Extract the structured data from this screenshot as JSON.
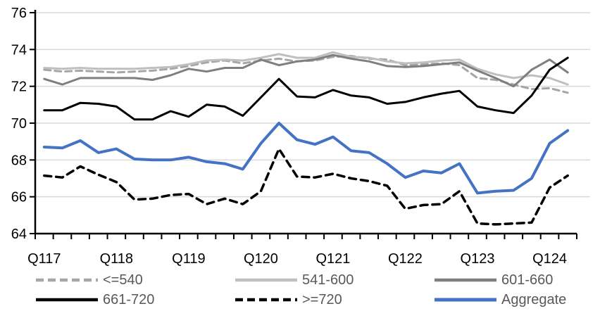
{
  "chart_data": {
    "type": "line",
    "title": "",
    "grid": true,
    "legend_position": "bottom",
    "ylim": [
      64,
      76
    ],
    "y_ticks": [
      64,
      66,
      68,
      70,
      72,
      74,
      76
    ],
    "x_tick_labels": [
      "Q117",
      "Q118",
      "Q119",
      "Q120",
      "Q121",
      "Q122",
      "Q123",
      "Q124"
    ],
    "categories": [
      "Q117",
      "Q217",
      "Q317",
      "Q417",
      "Q118",
      "Q218",
      "Q318",
      "Q418",
      "Q119",
      "Q219",
      "Q319",
      "Q419",
      "Q120",
      "Q220",
      "Q320",
      "Q420",
      "Q121",
      "Q221",
      "Q321",
      "Q421",
      "Q122",
      "Q222",
      "Q322",
      "Q422",
      "Q123",
      "Q223",
      "Q323",
      "Q423",
      "Q124",
      "Q224"
    ],
    "colors": {
      "axis": "#000000",
      "gridline": "#d9d9d9",
      "tick_label": "#000000",
      "legend_text": "#595959",
      "accent_blue": "#4472c4"
    },
    "series": [
      {
        "name": "<=540",
        "color": "#a6a6a6",
        "dash": "9 6",
        "width": 3,
        "values": [
          72.9,
          72.8,
          72.85,
          72.8,
          72.75,
          72.8,
          72.85,
          72.95,
          73.1,
          73.3,
          73.4,
          73.25,
          73.4,
          73.5,
          73.35,
          73.4,
          73.6,
          73.65,
          73.5,
          73.45,
          73.15,
          73.2,
          73.25,
          73.15,
          72.45,
          72.35,
          72.1,
          71.85,
          71.9,
          71.65
        ]
      },
      {
        "name": "541-600",
        "color": "#bfbfbf",
        "dash": null,
        "width": 3,
        "values": [
          73.0,
          72.95,
          73.0,
          72.95,
          72.95,
          72.95,
          73.0,
          73.05,
          73.2,
          73.4,
          73.45,
          73.4,
          73.55,
          73.75,
          73.55,
          73.55,
          73.85,
          73.6,
          73.55,
          73.35,
          73.25,
          73.3,
          73.4,
          73.45,
          72.95,
          72.65,
          72.45,
          72.6,
          72.45,
          72.1
        ]
      },
      {
        "name": "601-660",
        "color": "#7f7f7f",
        "dash": null,
        "width": 3,
        "values": [
          72.4,
          72.1,
          72.45,
          72.45,
          72.45,
          72.45,
          72.35,
          72.6,
          72.95,
          72.8,
          73.0,
          73.0,
          73.45,
          73.15,
          73.35,
          73.45,
          73.7,
          73.5,
          73.35,
          73.1,
          73.05,
          73.1,
          73.2,
          73.3,
          72.85,
          72.45,
          72.0,
          72.9,
          73.45,
          72.75
        ]
      },
      {
        "name": "661-720",
        "color": "#000000",
        "dash": null,
        "width": 3,
        "values": [
          70.7,
          70.7,
          71.1,
          71.05,
          70.9,
          70.2,
          70.2,
          70.65,
          70.35,
          71.0,
          70.9,
          70.4,
          71.4,
          72.4,
          71.45,
          71.4,
          71.8,
          71.5,
          71.4,
          71.05,
          71.15,
          71.4,
          71.6,
          71.75,
          70.9,
          70.7,
          70.55,
          71.5,
          72.9,
          73.55
        ]
      },
      {
        "name": ">=720",
        "color": "#000000",
        "dash": "10 7",
        "width": 3.5,
        "values": [
          67.15,
          67.05,
          67.65,
          67.2,
          66.8,
          65.85,
          65.9,
          66.1,
          66.15,
          65.6,
          65.9,
          65.6,
          66.3,
          68.6,
          67.1,
          67.05,
          67.25,
          67.0,
          66.85,
          66.6,
          65.35,
          65.55,
          65.6,
          66.3,
          64.55,
          64.5,
          64.55,
          64.6,
          66.5,
          67.15
        ]
      },
      {
        "name": "Aggregate",
        "color": "#4472c4",
        "dash": null,
        "width": 4,
        "values": [
          68.7,
          68.65,
          69.05,
          68.4,
          68.6,
          68.05,
          68.0,
          68.0,
          68.15,
          67.9,
          67.8,
          67.5,
          68.9,
          70.0,
          69.1,
          68.85,
          69.25,
          68.5,
          68.4,
          67.8,
          67.05,
          67.4,
          67.3,
          67.8,
          66.2,
          66.3,
          66.35,
          67.0,
          68.9,
          69.6
        ]
      }
    ]
  }
}
